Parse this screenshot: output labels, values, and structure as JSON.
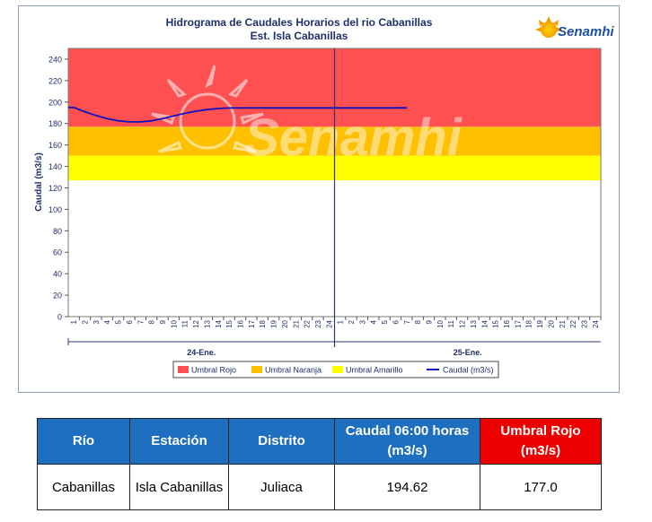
{
  "chart_data": {
    "type": "line",
    "title": "Hidrograma de Caudales Horarios del rio Cabanillas",
    "subtitle": "Est. Isla Cabanillas",
    "ylabel": "Caudal  (m3/s)",
    "ylim": [
      0,
      250
    ],
    "yticks": [
      0,
      20,
      40,
      60,
      80,
      100,
      120,
      140,
      160,
      180,
      200,
      220,
      240
    ],
    "hours": [
      "1",
      "2",
      "3",
      "4",
      "5",
      "6",
      "7",
      "8",
      "9",
      "10",
      "11",
      "12",
      "13",
      "14",
      "15",
      "16",
      "17",
      "18",
      "19",
      "20",
      "21",
      "22",
      "23",
      "24"
    ],
    "days": [
      "24-Ene.",
      "25-Ene."
    ],
    "thresholds": [
      {
        "name": "Umbral Rojo",
        "min": 177,
        "max": 250,
        "color": "#fe5050"
      },
      {
        "name": "Umbral Naranja",
        "min": 150,
        "max": 177,
        "color": "#ffc000"
      },
      {
        "name": "Umbral Amarillo",
        "min": 127,
        "max": 150,
        "color": "#ffff00"
      }
    ],
    "series": [
      {
        "name": "Caudal (m3/s)",
        "color": "#1010c0",
        "x": [
          1,
          2,
          3,
          4,
          5,
          6,
          7,
          8,
          9,
          10,
          11,
          12,
          13,
          14,
          15,
          16,
          17,
          18,
          19,
          20,
          21,
          22,
          23,
          24,
          25,
          26,
          27,
          28,
          29,
          30,
          31
        ],
        "values": [
          195,
          191,
          187.5,
          184.5,
          182.5,
          181.5,
          181.5,
          182.5,
          184.5,
          187,
          189.5,
          191.5,
          193,
          194,
          194.5,
          194.6,
          194.6,
          194.6,
          194.6,
          194.6,
          194.6,
          194.6,
          194.6,
          194.6,
          194.6,
          194.6,
          194.6,
          194.6,
          194.6,
          194.6,
          194.62
        ]
      }
    ],
    "legend_position": "bottom",
    "grid": false
  },
  "logo": {
    "text": "Senamhi",
    "watermark": "Senamhi"
  },
  "table": {
    "headers": [
      "Río",
      "Estación",
      "Distrito",
      "Caudal  06:00 horas (m3/s)",
      "Umbral Rojo (m3/s)"
    ],
    "row": [
      "Cabanillas",
      "Isla Cabanillas",
      "Juliaca",
      "194.62",
      "177.0"
    ]
  }
}
